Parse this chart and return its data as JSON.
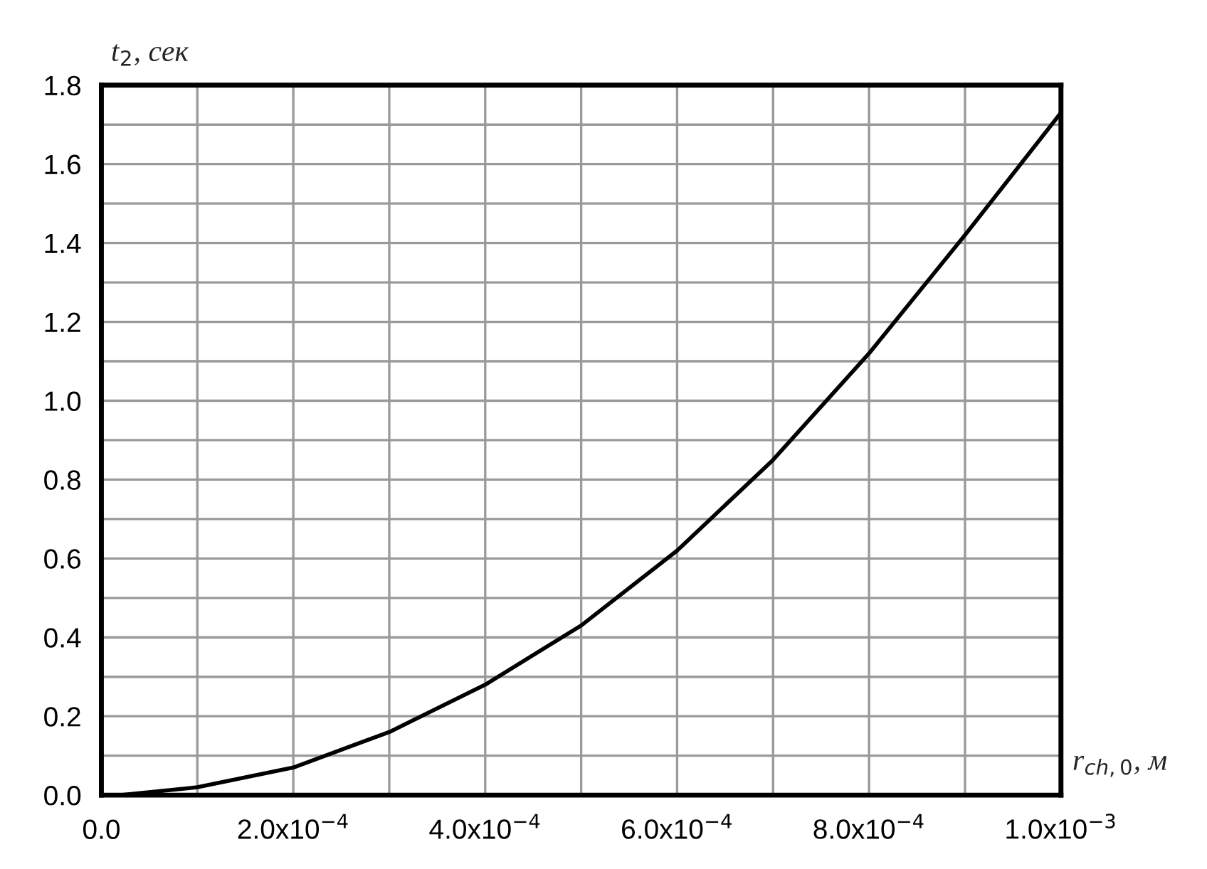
{
  "chart_data": {
    "type": "line",
    "xlabel": "r$_{ch,0}$, м",
    "ylabel": "t$_{2}$, сек",
    "x": [
      2e-05,
      0.0001,
      0.0002,
      0.0003,
      0.0004,
      0.0005,
      0.0006,
      0.0007,
      0.0008,
      0.0009,
      0.001
    ],
    "series": [
      {
        "color": "#000000",
        "values": [
          0.0,
          0.02,
          0.07,
          0.16,
          0.28,
          0.43,
          0.62,
          0.85,
          1.12,
          1.42,
          1.73
        ]
      }
    ],
    "xlim": [
      0,
      0.001
    ],
    "ylim": [
      0,
      1.8
    ],
    "xticks": [
      {
        "value": 0,
        "label": "0.0"
      },
      {
        "value": 0.0001,
        "label": null
      },
      {
        "value": 0.0002,
        "label": "2.0x10$^{−4}$"
      },
      {
        "value": 0.0003,
        "label": null
      },
      {
        "value": 0.0004,
        "label": "4.0x10$^{−4}$"
      },
      {
        "value": 0.0005,
        "label": null
      },
      {
        "value": 0.0006,
        "label": "6.0x10$^{−4}$"
      },
      {
        "value": 0.0007,
        "label": null
      },
      {
        "value": 0.0008,
        "label": "8.0x10$^{−4}$"
      },
      {
        "value": 0.0009,
        "label": null
      },
      {
        "value": 0.001,
        "label": "1.0x10$^{−3}$"
      }
    ],
    "yticks": [
      {
        "value": 0,
        "label": "0.0"
      },
      {
        "value": 0.1,
        "label": null
      },
      0.2,
      {
        "value": 0.3,
        "label": null
      },
      0.4,
      {
        "value": 0.5,
        "label": null
      },
      0.6,
      {
        "value": 0.7,
        "label": null
      },
      0.8,
      {
        "value": 0.9,
        "label": null
      },
      {
        "value": 1,
        "label": "1.0"
      },
      {
        "value": 1.1,
        "label": null
      },
      1.2,
      {
        "value": 1.3,
        "label": null
      },
      1.4,
      {
        "value": 1.5,
        "label": null
      },
      1.6,
      {
        "value": 1.7,
        "label": null
      },
      1.8
    ],
    "grid": true,
    "line_style": "solid"
  }
}
